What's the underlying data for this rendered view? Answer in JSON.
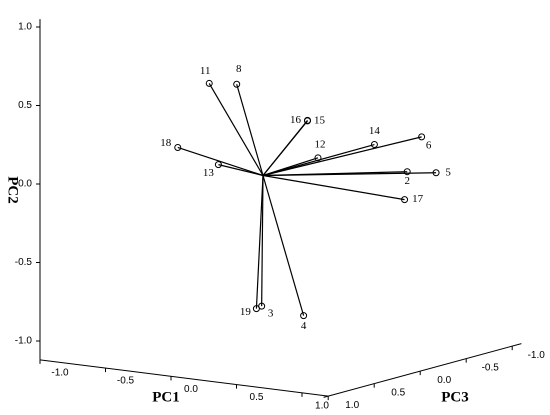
{
  "chart_data": {
    "type": "scatter3d",
    "xlabel": "PC1",
    "ylabel": "PC2",
    "zlabel": "PC3",
    "labels": [
      "11",
      "8",
      "16",
      "15",
      "12",
      "14",
      "6",
      "5",
      "2",
      "17",
      "18",
      "13",
      "19",
      "3",
      "4"
    ],
    "x": [
      -0.27,
      0.01,
      0.41,
      0.48,
      0.49,
      0.71,
      0.93,
      0.97,
      0.89,
      0.87,
      -0.44,
      -0.2,
      0.02,
      0.06,
      0.31
    ],
    "y": [
      0.59,
      0.63,
      0.41,
      0.43,
      0.18,
      0.24,
      0.28,
      0.04,
      0.07,
      -0.11,
      0.18,
      0.08,
      -0.83,
      -0.81,
      -0.86
    ],
    "z": [
      0.2,
      0.3,
      0.1,
      0.2,
      0.1,
      -0.2,
      -0.4,
      -0.5,
      -0.3,
      -0.3,
      0.3,
      0.2,
      0.1,
      0.1,
      0.0
    ],
    "xlim": [
      -1,
      1
    ],
    "ylim": [
      -1,
      1
    ],
    "zlim": [
      -1,
      1
    ],
    "xticks": [
      {
        "value": -1,
        "label": "-1.0"
      },
      -0.5,
      {
        "value": 0,
        "label": "0.0"
      },
      0.5,
      {
        "value": 1,
        "label": "1.0"
      }
    ],
    "yticks": [
      {
        "value": -1,
        "label": "-1.0"
      },
      -0.5,
      {
        "value": 0,
        "label": "0.0"
      },
      0.5,
      {
        "value": 1,
        "label": "1.0"
      }
    ],
    "zticks": [
      {
        "value": -1,
        "label": "-1.0"
      },
      -0.5,
      {
        "value": 0,
        "label": "0.0"
      },
      0.5,
      {
        "value": 1,
        "label": "1.0"
      }
    ],
    "color": "#000000"
  }
}
